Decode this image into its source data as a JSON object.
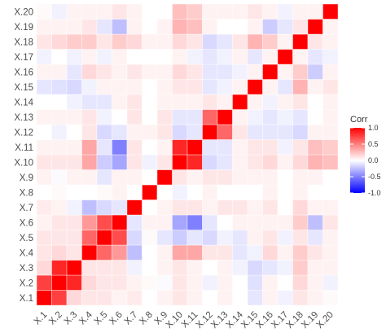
{
  "chart_data": {
    "type": "heatmap",
    "x": [
      "X.1",
      "X.2",
      "X.3",
      "X.4",
      "X.5",
      "X.6",
      "X.7",
      "X.8",
      "X.9",
      "X.10",
      "X.11",
      "X.12",
      "X.13",
      "X.14",
      "X.15",
      "X.16",
      "X.17",
      "X.18",
      "X.19",
      "X.20"
    ],
    "y": [
      "X.1",
      "X.2",
      "X.3",
      "X.4",
      "X.5",
      "X.6",
      "X.7",
      "X.8",
      "X.9",
      "X.10",
      "X.11",
      "X.12",
      "X.13",
      "X.14",
      "X.15",
      "X.16",
      "X.17",
      "X.18",
      "X.19",
      "X.20"
    ],
    "values": [
      [
        1,
        0.75,
        0.15,
        0.1,
        0.1,
        0.05,
        0.08,
        0,
        0.05,
        0.1,
        0.05,
        0,
        0.05,
        0,
        -0.1,
        0.05,
        -0.05,
        0.1,
        0.05,
        0.02
      ],
      [
        0.75,
        1,
        0.85,
        0.15,
        0.1,
        0.1,
        0.05,
        0.02,
        -0.02,
        0.1,
        0.05,
        -0.05,
        0.05,
        0,
        -0.12,
        0.05,
        0,
        0.15,
        0.05,
        -0.05
      ],
      [
        0.15,
        0.85,
        1,
        0.1,
        0.1,
        0.1,
        -0.05,
        0,
        0.05,
        0.1,
        0.05,
        0,
        0.05,
        -0.05,
        -0.15,
        -0.1,
        -0.05,
        0.2,
        0.05,
        0.05
      ],
      [
        0.1,
        0.15,
        0.1,
        1,
        0.6,
        0.4,
        -0.25,
        0,
        0.05,
        0.35,
        0.35,
        0.1,
        0.1,
        -0.1,
        -0.05,
        0.15,
        0.05,
        0.2,
        0.1,
        0.05
      ],
      [
        0.1,
        0.1,
        0.1,
        0.6,
        1,
        0.7,
        -0.15,
        0.02,
        -0.1,
        -0.2,
        -0.1,
        -0.15,
        -0.05,
        -0.1,
        0.05,
        0.1,
        -0.05,
        0.1,
        -0.1,
        0.05
      ],
      [
        0.05,
        0.1,
        0.1,
        0.4,
        0.7,
        1,
        -0.1,
        0.05,
        0.05,
        -0.35,
        -0.5,
        -0.1,
        0,
        0.05,
        0.05,
        0.05,
        0.05,
        0.2,
        -0.25,
        0.1
      ],
      [
        0.08,
        0.05,
        -0.05,
        -0.25,
        -0.15,
        -0.1,
        1,
        0,
        0.05,
        0.1,
        0.1,
        0.05,
        0.1,
        0.1,
        0.05,
        0.1,
        0,
        0.15,
        0.05,
        0.05
      ],
      [
        0,
        0.02,
        0,
        0,
        0.02,
        0.05,
        0,
        1,
        0,
        -0.05,
        0,
        0.05,
        0,
        0,
        0,
        0.05,
        0,
        0.05,
        0,
        0
      ],
      [
        0.05,
        -0.02,
        0.05,
        0.05,
        -0.1,
        0.05,
        0.05,
        0,
        1,
        0.1,
        0.05,
        0.1,
        0.1,
        0.05,
        0.05,
        0.05,
        0,
        0.05,
        0.05,
        0
      ],
      [
        0.1,
        0.1,
        0.1,
        0.35,
        -0.2,
        -0.35,
        0.1,
        -0.05,
        0.1,
        1,
        0.85,
        -0.15,
        -0.1,
        0.05,
        0.1,
        0.15,
        0.05,
        0.15,
        0.3,
        0.25
      ],
      [
        0.05,
        0.05,
        0.05,
        0.35,
        -0.1,
        -0.5,
        0.1,
        0,
        0.05,
        0.85,
        1,
        -0.1,
        -0.1,
        0.05,
        0.1,
        0.1,
        -0.05,
        0.1,
        0.25,
        0.2
      ],
      [
        0,
        -0.05,
        0,
        0.1,
        -0.15,
        -0.1,
        0.05,
        0.05,
        0.1,
        -0.15,
        -0.1,
        1,
        0.6,
        0.1,
        -0.1,
        -0.1,
        -0.1,
        -0.15,
        0.05,
        0.05
      ],
      [
        0.05,
        0.05,
        0.05,
        0.1,
        -0.05,
        0,
        0.1,
        0,
        0.1,
        -0.1,
        -0.1,
        0.6,
        1,
        0.05,
        -0.05,
        -0.1,
        -0.05,
        -0.1,
        0,
        0.05
      ],
      [
        0,
        0,
        -0.05,
        -0.1,
        -0.1,
        0.05,
        0.1,
        0,
        0.05,
        0.05,
        0.05,
        0.1,
        0.05,
        1,
        0.05,
        -0.05,
        0.05,
        0.1,
        0,
        0.05
      ],
      [
        -0.1,
        -0.12,
        -0.15,
        -0.05,
        0.05,
        0.05,
        0.05,
        0,
        0.05,
        0.1,
        0.1,
        -0.1,
        -0.05,
        0.05,
        1,
        0.05,
        -0.1,
        0.3,
        0.05,
        0.1
      ],
      [
        0.05,
        0.05,
        -0.1,
        0.15,
        0.1,
        0.05,
        0.1,
        0.05,
        0.05,
        0.15,
        0.1,
        -0.1,
        -0.1,
        -0.05,
        0.05,
        1,
        0.05,
        0.2,
        -0.2,
        0.05
      ],
      [
        -0.05,
        0,
        -0.05,
        0.05,
        -0.05,
        0.05,
        0,
        0,
        0,
        0.05,
        -0.05,
        -0.1,
        -0.05,
        0.05,
        -0.1,
        0.05,
        1,
        0.05,
        -0.1,
        -0.05
      ],
      [
        0.1,
        0.15,
        0.2,
        0.2,
        0.1,
        0.2,
        0.15,
        0.05,
        0.05,
        0.15,
        0.1,
        -0.15,
        -0.1,
        0.1,
        0.3,
        0.2,
        0.05,
        1,
        0.1,
        0.05
      ],
      [
        0.05,
        0.05,
        0.05,
        0.1,
        -0.1,
        -0.25,
        0.05,
        0,
        0.05,
        0.3,
        0.25,
        0.05,
        0,
        0,
        0.05,
        -0.2,
        -0.1,
        0.1,
        1,
        0.05
      ],
      [
        0.02,
        -0.05,
        0.05,
        0.05,
        0.05,
        0.1,
        0.05,
        0,
        0,
        0.25,
        0.2,
        0.05,
        0.05,
        0.05,
        0.1,
        0.05,
        -0.05,
        0.05,
        0.05,
        1
      ]
    ],
    "legend_title": "Corr",
    "zlim": [
      -1,
      1
    ],
    "zticks": [
      {
        "value": 1,
        "label": "1.0"
      },
      0.5,
      {
        "value": 0,
        "label": "0.0"
      },
      -0.5,
      {
        "value": -1,
        "label": "-1.0"
      }
    ],
    "colors": {
      "low": "#0000FF",
      "mid": "#FFFFFF",
      "high": "#FF0000"
    }
  }
}
